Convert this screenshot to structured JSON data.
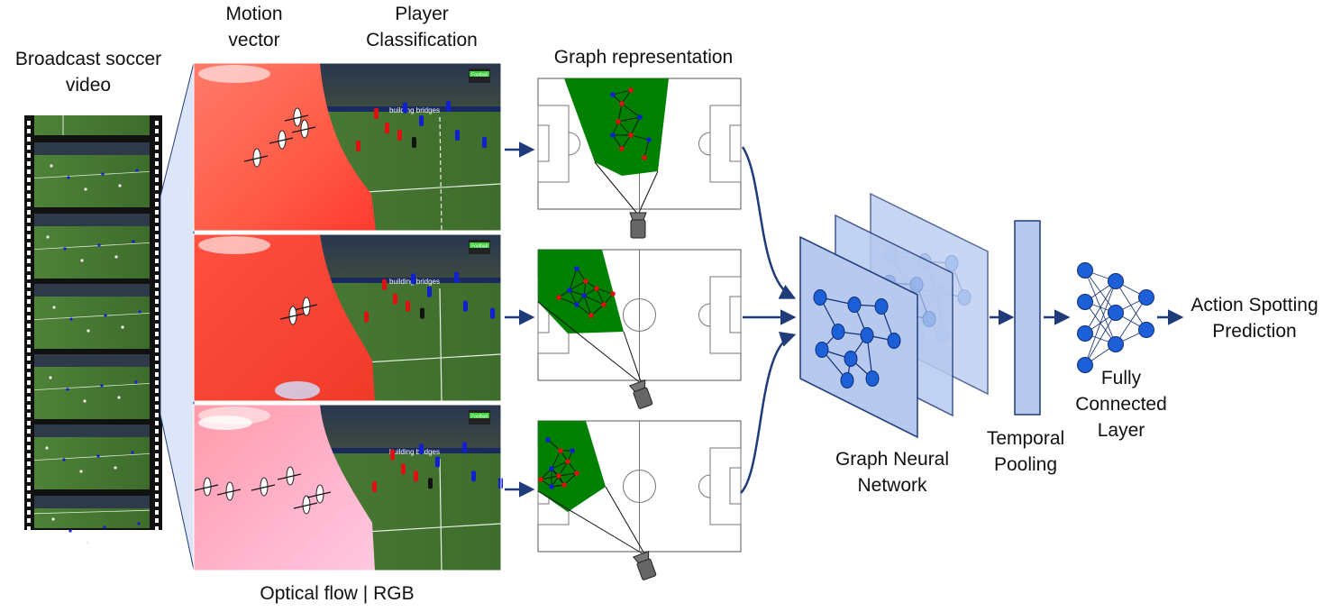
{
  "labels": {
    "input_video": [
      "Broadcast soccer",
      "video"
    ],
    "motion_vector": [
      "Motion",
      "vector"
    ],
    "player_classification": [
      "Player",
      "Classification"
    ],
    "graph_representation": "Graph representation",
    "optical_flow_rgb": "Optical flow | RGB",
    "gnn": [
      "Graph Neural",
      "Network"
    ],
    "temporal_pooling": [
      "Temporal",
      "Pooling"
    ],
    "fc_layer": [
      "Fully",
      "Connected",
      "Layer"
    ],
    "output": [
      "Action Spotting",
      "Prediction"
    ]
  },
  "frames": {
    "broadcast_banner": "building bridges",
    "channel_badge": "Football"
  },
  "colors": {
    "arrow": "#1f3b7a",
    "pitch_green": "#008000",
    "team_red": "#e01010",
    "team_blue": "#1020d0",
    "flow_red": "#ff5a45",
    "flow_pink": "#ffb0c8",
    "grass": "#4a7a35",
    "gnn_layer": "#b7c9ef",
    "node": "#1d5fd6"
  }
}
